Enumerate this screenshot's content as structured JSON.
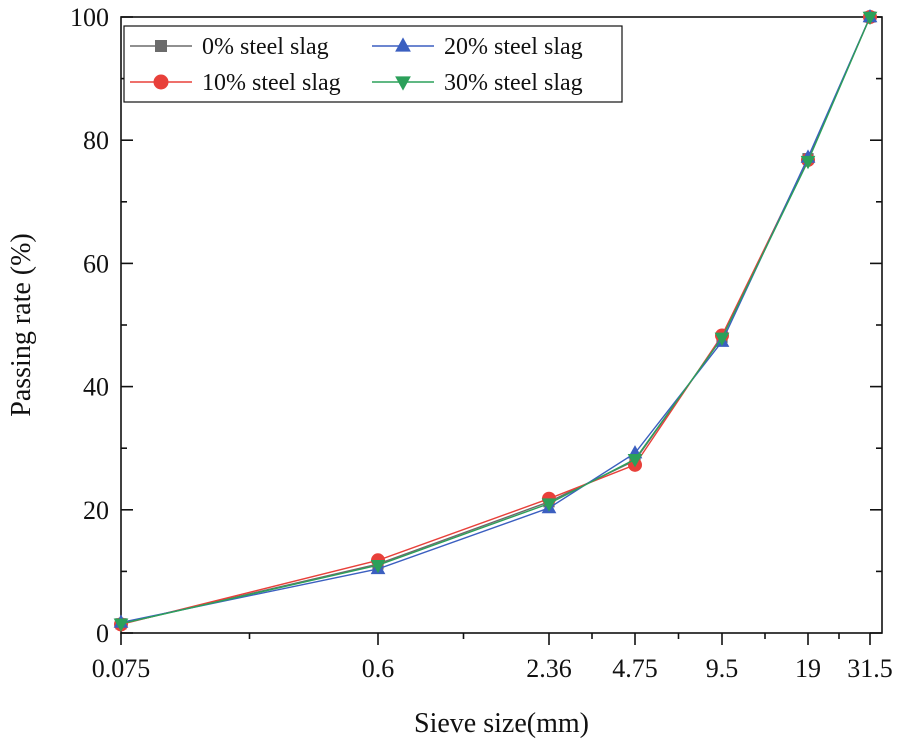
{
  "chart_data": {
    "type": "line",
    "title": "",
    "xlabel": "Sieve size(mm)",
    "ylabel": "Passing rate (%)",
    "x_scale": "categorical-log-like",
    "categories": [
      "0.075",
      "0.6",
      "2.36",
      "4.75",
      "9.5",
      "19",
      "31.5"
    ],
    "ylim": [
      0,
      100
    ],
    "yticks": [
      "0",
      "20",
      "40",
      "60",
      "80",
      "100"
    ],
    "legend_position": "top-left",
    "series": [
      {
        "name": "0% steel slag",
        "color": "#6b6b6b",
        "marker": "square",
        "values": [
          1.5,
          11.2,
          21.3,
          28.0,
          48.0,
          77.0,
          100
        ]
      },
      {
        "name": "10% steel slag",
        "color": "#e8403a",
        "marker": "circle",
        "values": [
          1.4,
          11.8,
          21.8,
          27.3,
          48.3,
          76.8,
          100
        ]
      },
      {
        "name": "20% steel slag",
        "color": "#3b5fc0",
        "marker": "triangle-up",
        "values": [
          1.7,
          10.4,
          20.3,
          29.2,
          47.3,
          77.2,
          100
        ]
      },
      {
        "name": "30% steel slag",
        "color": "#2ca05a",
        "marker": "triangle-down",
        "values": [
          1.5,
          11.0,
          21.0,
          28.2,
          47.9,
          76.6,
          100
        ]
      }
    ]
  }
}
